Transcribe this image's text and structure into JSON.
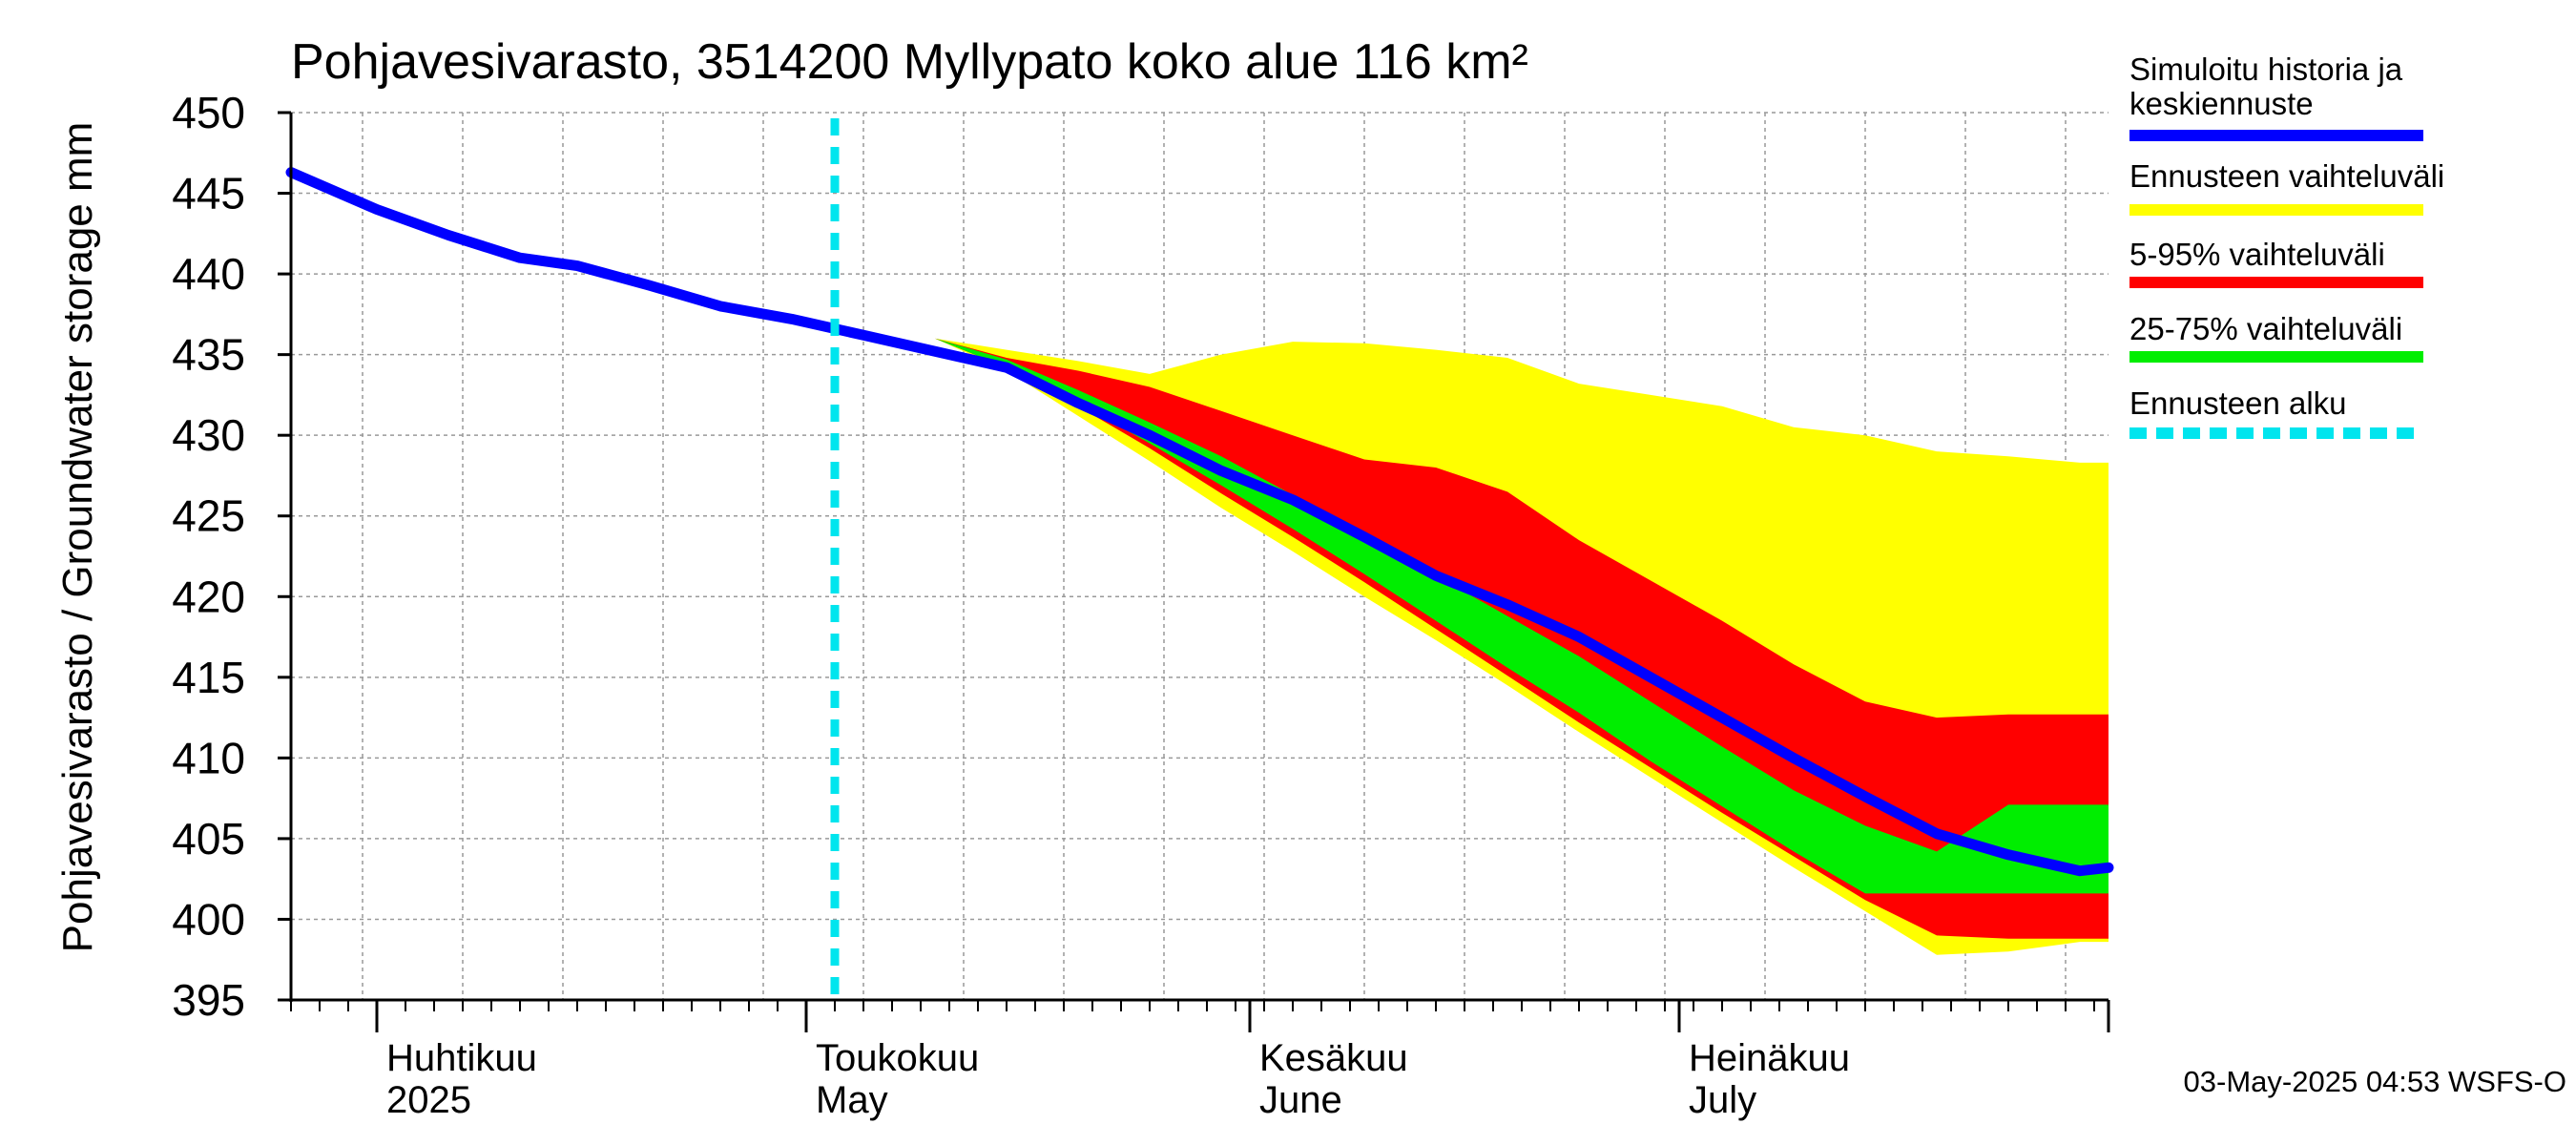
{
  "chart_data": {
    "type": "area",
    "title": "Pohjavesivarasto, 3514200 Myllypato koko alue 116 km²",
    "ylabel": "Pohjavesivarasto / Groundwater storage   mm",
    "ylim": [
      395,
      450
    ],
    "yticks": [
      395,
      400,
      405,
      410,
      415,
      420,
      425,
      430,
      435,
      440,
      445,
      450
    ],
    "xlim": [
      "2025-03-26",
      "2025-07-31"
    ],
    "grid": true,
    "month_labels": [
      {
        "fi": "Huhtikuu",
        "en": "2025",
        "start": "2025-04-01"
      },
      {
        "fi": "Toukokuu",
        "en": "May",
        "start": "2025-05-01"
      },
      {
        "fi": "Kesäkuu",
        "en": "June",
        "start": "2025-06-01"
      },
      {
        "fi": "Heinäkuu",
        "en": "July",
        "start": "2025-07-01"
      }
    ],
    "forecast_start": "2025-05-03",
    "x": [
      "2025-03-26",
      "2025-04-01",
      "2025-04-06",
      "2025-04-11",
      "2025-04-15",
      "2025-04-20",
      "2025-04-25",
      "2025-04-30",
      "2025-05-05",
      "2025-05-10",
      "2025-05-15",
      "2025-05-20",
      "2025-05-25",
      "2025-05-30",
      "2025-06-04",
      "2025-06-09",
      "2025-06-14",
      "2025-06-19",
      "2025-06-24",
      "2025-06-29",
      "2025-07-04",
      "2025-07-09",
      "2025-07-14",
      "2025-07-19",
      "2025-07-24",
      "2025-07-29",
      "2025-07-31"
    ],
    "series": [
      {
        "name": "Ennusteen vaihteluväli",
        "color": "#ffff00",
        "type": "band",
        "upper": [
          null,
          null,
          null,
          null,
          null,
          null,
          null,
          null,
          null,
          436.0,
          435.3,
          434.6,
          433.8,
          435.0,
          435.8,
          435.7,
          435.3,
          434.8,
          433.2,
          432.5,
          431.8,
          430.5,
          430.0,
          429.0,
          428.7,
          428.3,
          428.3
        ],
        "lower": [
          null,
          null,
          null,
          null,
          null,
          null,
          null,
          null,
          null,
          436.0,
          434.0,
          431.2,
          428.4,
          425.5,
          422.8,
          420.0,
          417.3,
          414.5,
          411.6,
          408.8,
          406.0,
          403.2,
          400.5,
          397.8,
          398.0,
          398.6,
          398.6
        ]
      },
      {
        "name": "5-95% vaihteluväli",
        "color": "#ff0000",
        "type": "band",
        "upper": [
          null,
          null,
          null,
          null,
          null,
          null,
          null,
          null,
          null,
          436.0,
          434.8,
          434.0,
          433.0,
          431.5,
          430.0,
          428.5,
          428.0,
          426.5,
          423.5,
          421.0,
          418.5,
          415.8,
          413.5,
          412.5,
          412.7,
          412.7,
          412.7
        ],
        "lower": [
          null,
          null,
          null,
          null,
          null,
          null,
          null,
          null,
          null,
          436.0,
          434.2,
          431.8,
          429.2,
          426.4,
          423.7,
          420.9,
          418.0,
          415.1,
          412.2,
          409.4,
          406.6,
          403.9,
          401.2,
          399.0,
          398.8,
          398.8,
          398.8
        ]
      },
      {
        "name": "25-75% vaihteluväli",
        "color": "#00ee00",
        "type": "band",
        "upper": [
          null,
          null,
          null,
          null,
          null,
          null,
          null,
          null,
          null,
          436.0,
          434.7,
          432.8,
          430.8,
          428.7,
          426.3,
          423.8,
          421.3,
          418.8,
          416.3,
          413.5,
          410.7,
          408.0,
          405.8,
          404.2,
          407.1,
          407.1,
          407.1
        ],
        "lower": [
          null,
          null,
          null,
          null,
          null,
          null,
          null,
          null,
          null,
          436.0,
          434.2,
          432.0,
          429.5,
          426.9,
          424.2,
          421.4,
          418.5,
          415.6,
          412.8,
          409.8,
          407.0,
          404.2,
          401.6,
          401.6,
          401.6,
          401.6,
          401.6
        ]
      },
      {
        "name": "Simuloitu historia ja keskiennuste",
        "color": "#0000ff",
        "type": "line",
        "values": [
          446.3,
          444.0,
          442.4,
          441.0,
          440.5,
          439.3,
          438.0,
          437.2,
          436.2,
          435.2,
          434.2,
          432.0,
          430.0,
          427.8,
          426.0,
          423.7,
          421.3,
          419.5,
          417.5,
          415.0,
          412.5,
          410.0,
          407.6,
          405.3,
          404.0,
          403.0,
          403.2
        ]
      },
      {
        "name": "Ennusteen alku",
        "color": "#00e5ee",
        "type": "vline",
        "x": "2025-05-03"
      }
    ]
  },
  "legend": [
    {
      "label": "Simuloitu historia ja\nkeskiennuste",
      "color": "#0000ff",
      "style": "solid"
    },
    {
      "label": "Ennusteen vaihteluväli",
      "color": "#ffff00",
      "style": "solid"
    },
    {
      "label": "5-95% vaihteluväli",
      "color": "#ff0000",
      "style": "solid"
    },
    {
      "label": "25-75% vaihteluväli",
      "color": "#00ee00",
      "style": "solid"
    },
    {
      "label": "Ennusteen alku",
      "color": "#00e5ee",
      "style": "dashed"
    }
  ],
  "footer": "03-May-2025 04:53 WSFS-O"
}
